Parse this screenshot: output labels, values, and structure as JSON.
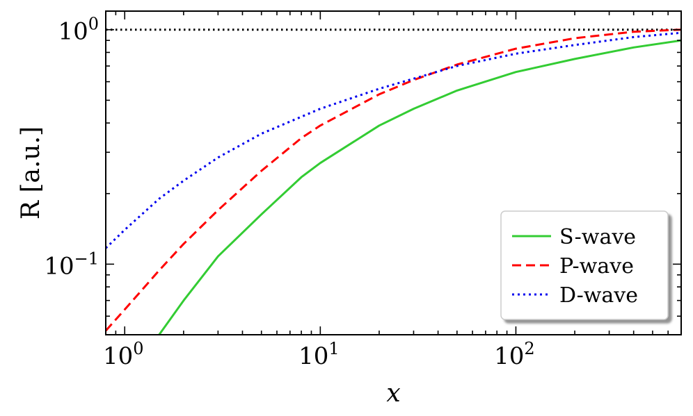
{
  "chart_data": {
    "type": "line",
    "xscale": "log",
    "yscale": "log",
    "xlim": [
      0.8,
      700
    ],
    "ylim": [
      0.05,
      1.2
    ],
    "xlabel": "x",
    "ylabel": "R [a.u.]",
    "xticks": [
      {
        "value": 1,
        "label": "10^0"
      },
      {
        "value": 10,
        "label": "10^1"
      },
      {
        "value": 100,
        "label": "10^2"
      }
    ],
    "yticks": [
      {
        "value": 0.1,
        "label": "10^-1"
      },
      {
        "value": 1,
        "label": "10^0"
      }
    ],
    "reference_line": {
      "y": 1.0,
      "style": "dotted",
      "color": "#000000"
    },
    "legend_position": "lower-right",
    "grid": false,
    "series": [
      {
        "name": "S-wave",
        "color": "#33cc33",
        "style": "solid",
        "x": [
          1.5,
          2,
          3,
          5,
          8,
          10,
          20,
          30,
          50,
          100,
          200,
          400,
          700
        ],
        "y": [
          0.05,
          0.07,
          0.108,
          0.163,
          0.235,
          0.27,
          0.39,
          0.46,
          0.55,
          0.66,
          0.75,
          0.84,
          0.9
        ]
      },
      {
        "name": "P-wave",
        "color": "#ff0000",
        "style": "dashed",
        "x": [
          0.8,
          1,
          1.5,
          2,
          3,
          5,
          8,
          10,
          20,
          30,
          50,
          100,
          200,
          400,
          700
        ],
        "y": [
          0.052,
          0.064,
          0.094,
          0.122,
          0.17,
          0.25,
          0.345,
          0.39,
          0.53,
          0.61,
          0.71,
          0.83,
          0.92,
          0.98,
          1.0
        ]
      },
      {
        "name": "D-wave",
        "color": "#0000ee",
        "style": "dotted",
        "x": [
          0.8,
          1,
          1.5,
          2,
          3,
          5,
          10,
          20,
          50,
          100,
          200,
          400,
          700
        ],
        "y": [
          0.117,
          0.14,
          0.19,
          0.227,
          0.285,
          0.36,
          0.46,
          0.56,
          0.7,
          0.79,
          0.86,
          0.93,
          0.97
        ]
      }
    ]
  }
}
